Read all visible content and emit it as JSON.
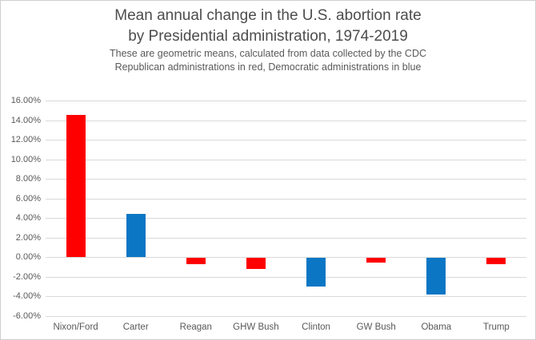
{
  "header": {
    "title_line1": "Mean annual change in the U.S. abortion rate",
    "title_line2": "by Presidential administration, 1974-2019",
    "subtitle_line1": "These are geometric means, calculated from data collected by the CDC",
    "subtitle_line2": "Republican administrations in red, Democratic administrations in blue"
  },
  "chart_data": {
    "type": "bar",
    "title": "Mean annual change in the U.S. abortion rate by Presidential administration, 1974-2019",
    "subtitle": "These are geometric means, calculated from data collected by the CDC. Republican administrations in red, Democratic administrations in blue.",
    "categories": [
      "Nixon/Ford",
      "Carter",
      "Reagan",
      "GHW Bush",
      "Clinton",
      "GW Bush",
      "Obama",
      "Trump"
    ],
    "values": [
      14.5,
      4.4,
      -0.6,
      -1.1,
      -2.9,
      -0.5,
      -3.7,
      -0.6
    ],
    "party": [
      "R",
      "D",
      "R",
      "R",
      "D",
      "R",
      "D",
      "R"
    ],
    "colors": {
      "republican": "#fe0000",
      "democratic": "#0b76c4",
      "gridline": "#d9d9d9",
      "text": "#595959"
    },
    "y_ticks": [
      "16.00%",
      "14.00%",
      "12.00%",
      "10.00%",
      "8.00%",
      "6.00%",
      "4.00%",
      "2.00%",
      "0.00%",
      "-2.00%",
      "-4.00%",
      "-6.00%"
    ],
    "ylim": [
      -6,
      16
    ],
    "y_step": 2,
    "xlabel": "",
    "ylabel": "",
    "grid": true,
    "legend": "none"
  }
}
